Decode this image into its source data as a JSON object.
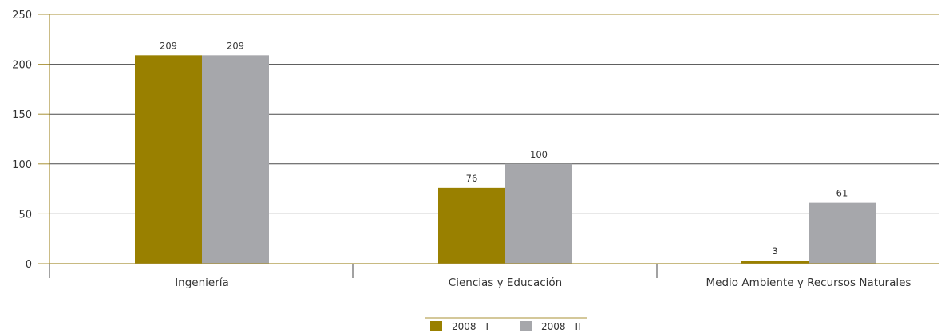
{
  "chart_data": {
    "type": "bar",
    "categories": [
      "Ingeniería",
      "Ciencias y Educación",
      "Medio Ambiente y Recursos Naturales"
    ],
    "series": [
      {
        "name": "2008 - I",
        "values": [
          209,
          76,
          3
        ],
        "color": "#998000"
      },
      {
        "name": "2008 - II",
        "values": [
          209,
          100,
          61
        ],
        "color": "#a6a7ab"
      }
    ],
    "ylim": [
      0,
      250
    ],
    "yticks": [
      "0",
      "50",
      "100",
      "150",
      "200",
      "250"
    ],
    "grid": true,
    "legend_position": "bottom-center",
    "data_labels": true,
    "gridline_color": "#4a4a4a",
    "axis_color": "#a89036"
  }
}
